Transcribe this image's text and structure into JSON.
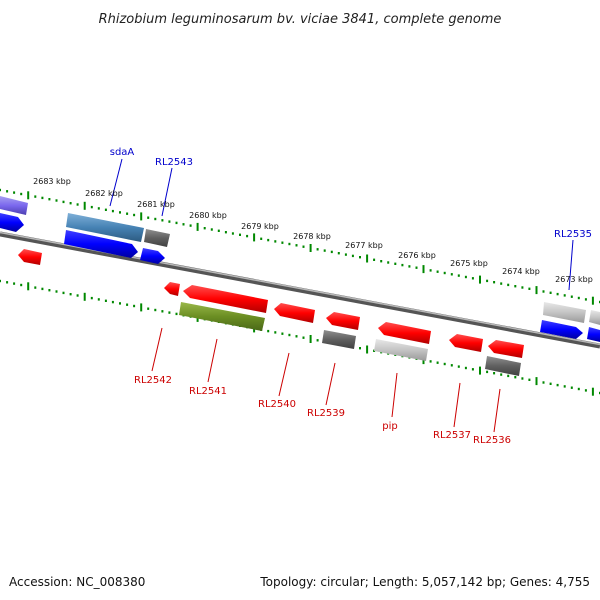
{
  "title": "Rhizobium leguminosarum bv. viciae 3841, complete genome",
  "footer": {
    "accession": "Accession: NC_008380",
    "summary": "Topology: circular; Length: 5,057,142 bp; Genes: 4,755"
  },
  "ticks": [
    {
      "label": "2683 kbp"
    },
    {
      "label": "2682 kbp"
    },
    {
      "label": "2681 kbp"
    },
    {
      "label": "2680 kbp"
    },
    {
      "label": "2679 kbp"
    },
    {
      "label": "2678 kbp"
    },
    {
      "label": "2677 kbp"
    },
    {
      "label": "2676 kbp"
    },
    {
      "label": "2675 kbp"
    },
    {
      "label": "2674 kbp"
    },
    {
      "label": "2673 kbp"
    }
  ],
  "gene_labels_top": [
    {
      "name": "sdaA",
      "color": "#0000cc"
    },
    {
      "name": "RL2543",
      "color": "#0000cc"
    },
    {
      "name": "RL2535",
      "color": "#0000cc"
    }
  ],
  "gene_labels_bottom": [
    {
      "name": "RL2542",
      "color": "#cc0000"
    },
    {
      "name": "RL2541",
      "color": "#cc0000"
    },
    {
      "name": "RL2540",
      "color": "#cc0000"
    },
    {
      "name": "RL2539",
      "color": "#cc0000"
    },
    {
      "name": "pip",
      "color": "#cc0000"
    },
    {
      "name": "RL2537",
      "color": "#cc0000"
    },
    {
      "name": "RL2536",
      "color": "#cc0000"
    }
  ],
  "colors": {
    "forward_gene": "#0000ff",
    "reverse_gene": "#ff0000",
    "tick": "#008800",
    "backbone": "#808080",
    "gene_grey": "#707070",
    "gene_light_grey": "#c8c8c8",
    "gene_olive": "#6b8e23",
    "gene_steel": "#4682b4",
    "gene_purple": "#7b68ee"
  }
}
